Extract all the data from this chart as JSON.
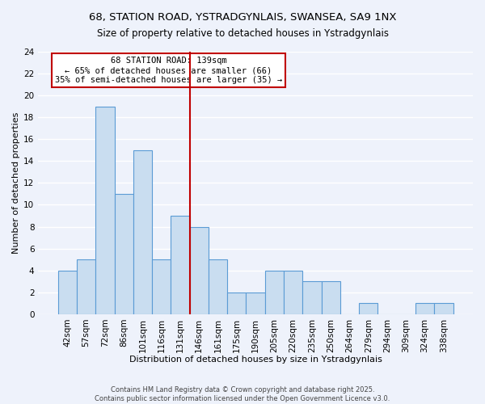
{
  "title": "68, STATION ROAD, YSTRADGYNLAIS, SWANSEA, SA9 1NX",
  "subtitle": "Size of property relative to detached houses in Ystradgynlais",
  "xlabel": "Distribution of detached houses by size in Ystradgynlais",
  "ylabel": "Number of detached properties",
  "bar_labels": [
    "42sqm",
    "57sqm",
    "72sqm",
    "86sqm",
    "101sqm",
    "116sqm",
    "131sqm",
    "146sqm",
    "161sqm",
    "175sqm",
    "190sqm",
    "205sqm",
    "220sqm",
    "235sqm",
    "250sqm",
    "264sqm",
    "279sqm",
    "294sqm",
    "309sqm",
    "324sqm",
    "338sqm"
  ],
  "bar_values": [
    4,
    5,
    19,
    11,
    15,
    5,
    9,
    8,
    5,
    2,
    2,
    4,
    4,
    3,
    3,
    0,
    1,
    0,
    0,
    1,
    1
  ],
  "bar_color": "#c9ddf0",
  "bar_edge_color": "#5b9bd5",
  "vline_bar_index": 6.5,
  "vline_color": "#c00000",
  "annotation_title": "68 STATION ROAD: 139sqm",
  "annotation_line1": "← 65% of detached houses are smaller (66)",
  "annotation_line2": "35% of semi-detached houses are larger (35) →",
  "ylim": [
    0,
    24
  ],
  "yticks": [
    0,
    2,
    4,
    6,
    8,
    10,
    12,
    14,
    16,
    18,
    20,
    22,
    24
  ],
  "footer1": "Contains HM Land Registry data © Crown copyright and database right 2025.",
  "footer2": "Contains public sector information licensed under the Open Government Licence v3.0.",
  "bg_color": "#eef2fb",
  "plot_bg_color": "#eef2fb",
  "grid_color": "#ffffff",
  "annotation_box_color": "#ffffff",
  "annotation_box_edge": "#c00000",
  "title_fontsize": 9.5,
  "subtitle_fontsize": 8.5,
  "axis_label_fontsize": 8,
  "tick_fontsize": 7.5,
  "annotation_fontsize": 7.5,
  "footer_fontsize": 6.0
}
